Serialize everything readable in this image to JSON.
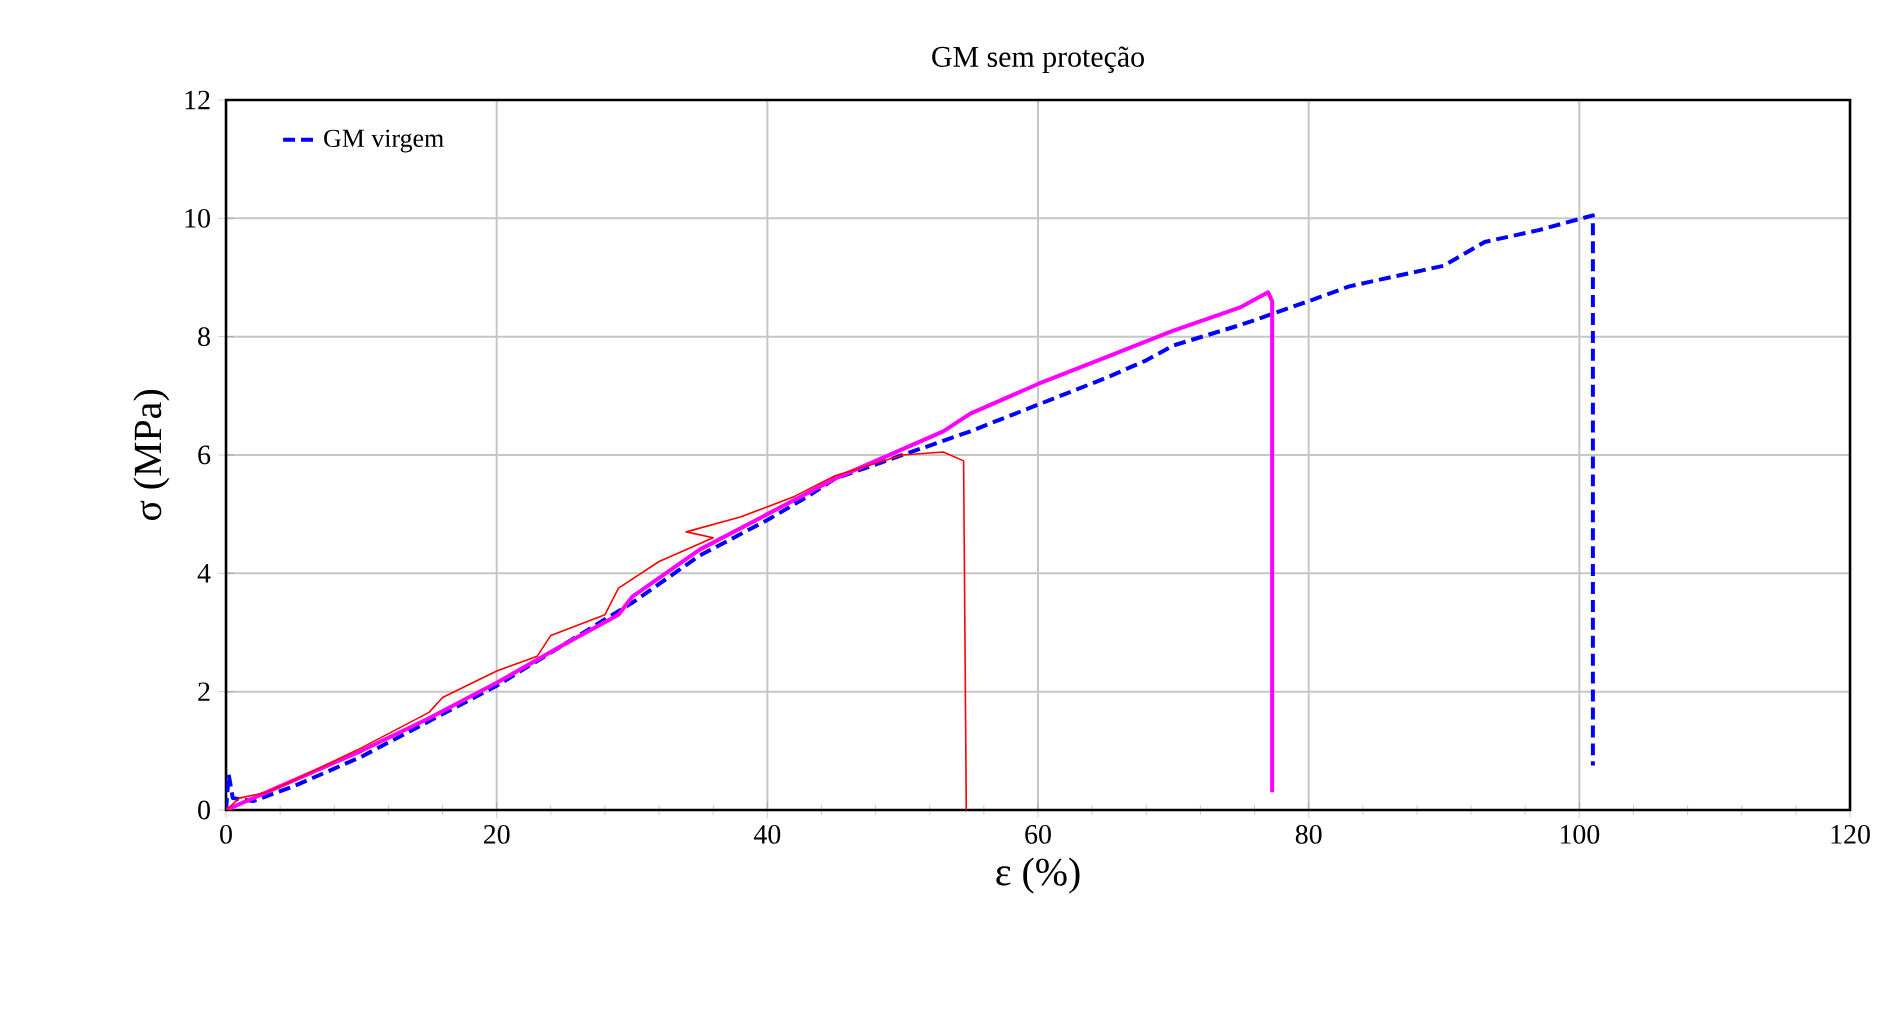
{
  "chart_data": {
    "type": "line",
    "title": "GM sem proteção",
    "xlabel": "ε (%)",
    "ylabel": "σ (MPa)",
    "xlim": [
      0,
      120
    ],
    "xticks": [
      0,
      20,
      40,
      60,
      80,
      100,
      120
    ],
    "ylim": [
      0,
      12
    ],
    "yticks": [
      0,
      2,
      4,
      6,
      8,
      10,
      12
    ],
    "grid": true,
    "legend": "top left",
    "marker": "none",
    "series": [
      {
        "name": "GM virgem",
        "color": "#0000ff",
        "line_style": "dashed",
        "x": [
          0,
          0.2,
          0.5,
          2,
          5,
          10,
          15,
          20,
          25,
          30,
          35,
          40,
          43,
          45,
          50,
          55,
          60,
          65,
          68,
          70,
          75,
          80,
          83,
          87,
          90,
          93,
          97,
          101,
          101
        ],
        "values": [
          0,
          0.6,
          0.2,
          0.15,
          0.4,
          0.9,
          1.5,
          2.1,
          2.8,
          3.5,
          4.3,
          4.9,
          5.3,
          5.6,
          6.0,
          6.4,
          6.85,
          7.3,
          7.6,
          7.85,
          8.2,
          8.6,
          8.85,
          9.05,
          9.2,
          9.6,
          9.8,
          10.05,
          0.75
        ]
      },
      {
        "color": "#ff00ff",
        "line_style": "solid",
        "x": [
          0,
          5,
          10,
          15,
          20,
          25,
          29,
          30,
          35,
          40,
          45,
          50,
          53,
          55,
          60,
          65,
          70,
          75,
          77,
          77.3,
          77.3
        ],
        "values": [
          0,
          0.5,
          1.0,
          1.55,
          2.15,
          2.8,
          3.3,
          3.6,
          4.4,
          5.0,
          5.6,
          6.1,
          6.4,
          6.7,
          7.2,
          7.65,
          8.1,
          8.5,
          8.75,
          8.6,
          0.3
        ]
      },
      {
        "color": "#ff0000",
        "line_style": "solid",
        "x": [
          0,
          1,
          3,
          5,
          10,
          15,
          16,
          20,
          23,
          24,
          28,
          29,
          32,
          36,
          34,
          38,
          42,
          45,
          50,
          53,
          54.5,
          54.7
        ],
        "values": [
          0,
          0.2,
          0.3,
          0.5,
          1.05,
          1.65,
          1.9,
          2.35,
          2.6,
          2.95,
          3.3,
          3.75,
          4.2,
          4.6,
          4.7,
          4.95,
          5.3,
          5.65,
          6.0,
          6.05,
          5.9,
          0
        ]
      }
    ]
  }
}
